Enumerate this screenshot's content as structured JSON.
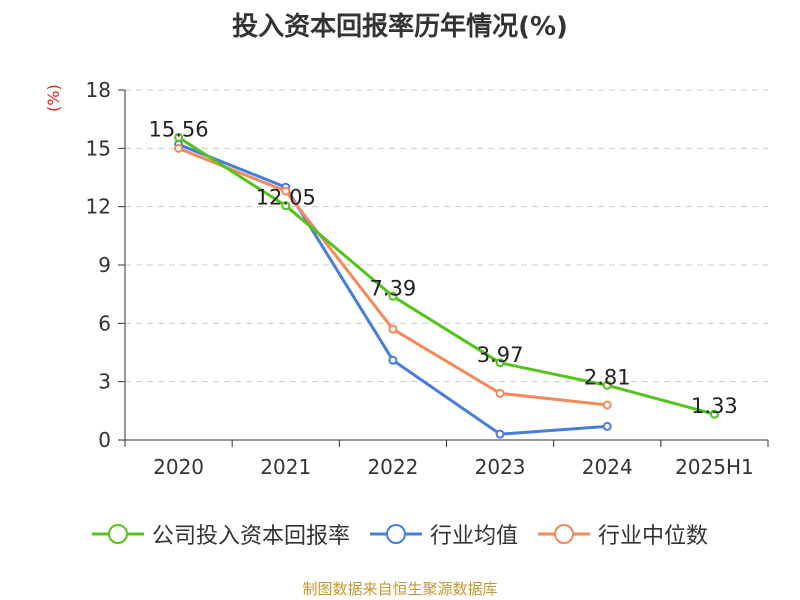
{
  "title": "投入资本回报率历年情况(%)",
  "unit": "(%)",
  "source": "制图数据来自恒生聚源数据库",
  "chart_data": {
    "type": "line",
    "categories": [
      "2020",
      "2021",
      "2022",
      "2023",
      "2024",
      "2025H1"
    ],
    "ylim": [
      0,
      18
    ],
    "yticks": [
      0,
      3,
      6,
      9,
      12,
      15,
      18
    ],
    "grid": true,
    "legend_position": "bottom",
    "series": [
      {
        "name": "公司投入资本回报率",
        "color": "#52c41a",
        "values": [
          15.56,
          12.05,
          7.39,
          3.97,
          2.81,
          1.33
        ],
        "labels": [
          "15.56",
          "12.05",
          "7.39",
          "3.97",
          "2.81",
          "1.33"
        ]
      },
      {
        "name": "行业均值",
        "color": "#4a7ddb",
        "values": [
          15.2,
          13.0,
          4.1,
          0.3,
          0.7,
          null
        ]
      },
      {
        "name": "行业中位数",
        "color": "#f5895a",
        "values": [
          15.0,
          12.8,
          5.7,
          2.4,
          1.8,
          null
        ]
      }
    ]
  }
}
